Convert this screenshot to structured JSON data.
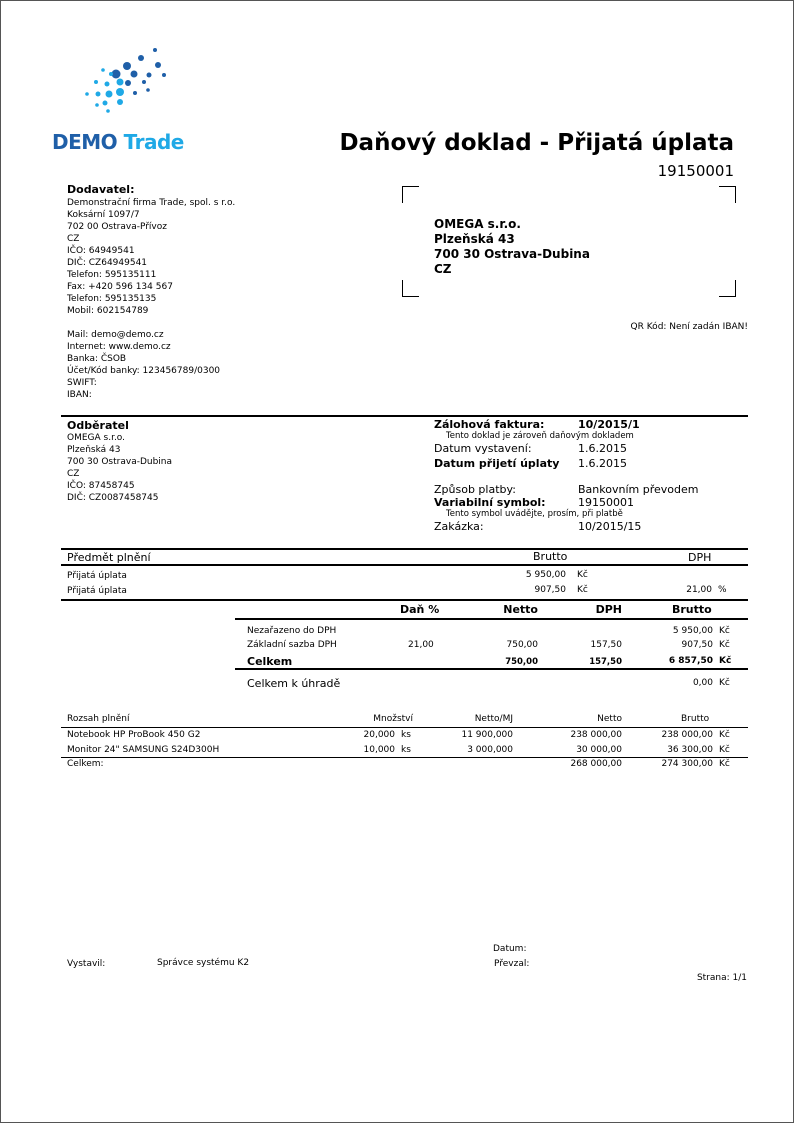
{
  "logo": {
    "text_dark": "DEMO",
    "text_light": "Trade",
    "colors": {
      "dark": "#1f5fa8",
      "light": "#1fa9e6"
    }
  },
  "header": {
    "title": "Daňový doklad - Přijatá úplata",
    "number": "19150001"
  },
  "supplier": {
    "heading": "Dodavatel:",
    "lines": [
      "Demonstrační firma Trade, spol. s r.o.",
      "Koksární 1097/7",
      "702 00 Ostrava-Přívoz",
      "CZ",
      "IČO: 64949541",
      "DIČ: CZ64949541",
      "Telefon: 595135111",
      "Fax: +420 596 134 567",
      "Telefon: 595135135",
      "Mobil: 602154789"
    ],
    "lines2": [
      "Mail: demo@demo.cz",
      "Internet: www.demo.cz",
      "Banka: ČSOB",
      "Účet/Kód banky: 123456789/0300",
      "SWIFT:",
      "IBAN:"
    ]
  },
  "address_box": {
    "lines": [
      "OMEGA s.r.o.",
      "Plzeňská 43",
      "700 30 Ostrava-Dubina",
      "CZ"
    ]
  },
  "qr_note": "QR Kód: Není zadán IBAN!",
  "customer": {
    "heading": "Odběratel",
    "lines": [
      "OMEGA s.r.o.",
      "Plzeňská 43",
      "700 30 Ostrava-Dubina",
      "CZ",
      "IČO: 87458745",
      "DIČ: CZ0087458745"
    ]
  },
  "details": {
    "advance_label": "Zálohová faktura:",
    "advance_value": "10/2015/1",
    "tax_note": "Tento doklad je zároveň daňovým dokladem",
    "issue_label": "Datum vystavení:",
    "issue_value": "1.6.2015",
    "received_label": "Datum přijetí úplaty",
    "received_value": "1.6.2015",
    "payment_label": "Způsob platby:",
    "payment_value": "Bankovním převodem",
    "vs_label": "Variabilní symbol:",
    "vs_value": "19150001",
    "vs_note": "Tento symbol uvádějte, prosím, při platbě",
    "order_label": "Zakázka:",
    "order_value": "10/2015/15"
  },
  "subject": {
    "headers": {
      "item": "Předmět plnění",
      "brutto": "Brutto",
      "dph": "DPH"
    },
    "rows": [
      {
        "item": "Přijatá úplata",
        "brutto": "5 950,00",
        "currency": "Kč",
        "dph": "",
        "dph_unit": ""
      },
      {
        "item": "Přijatá úplata",
        "brutto": "907,50",
        "currency": "Kč",
        "dph": "21,00",
        "dph_unit": "%"
      }
    ]
  },
  "vat_summary": {
    "headers": {
      "rate": "Daň %",
      "netto": "Netto",
      "dph": "DPH",
      "brutto": "Brutto"
    },
    "rows": [
      {
        "label": "Nezařazeno do DPH",
        "rate": "",
        "netto": "",
        "dph": "",
        "brutto": "5 950,00",
        "currency": "Kč"
      },
      {
        "label": "Základní sazba DPH",
        "rate": "21,00",
        "netto": "750,00",
        "dph": "157,50",
        "brutto": "907,50",
        "currency": "Kč"
      }
    ],
    "total": {
      "label": "Celkem",
      "netto": "750,00",
      "dph": "157,50",
      "brutto": "6 857,50",
      "currency": "Kč"
    },
    "to_pay": {
      "label": "Celkem k úhradě",
      "value": "0,00",
      "currency": "Kč"
    }
  },
  "items": {
    "headers": {
      "name": "Rozsah plnění",
      "qty": "Množství",
      "unit_price": "Netto/MJ",
      "netto": "Netto",
      "brutto": "Brutto"
    },
    "rows": [
      {
        "name": "Notebook HP ProBook 450 G2",
        "qty": "20,000",
        "unit": "ks",
        "unit_price": "11 900,000",
        "netto": "238 000,00",
        "brutto": "238 000,00",
        "currency": "Kč"
      },
      {
        "name": "Monitor 24\" SAMSUNG S24D300H",
        "qty": "10,000",
        "unit": "ks",
        "unit_price": "3 000,000",
        "netto": "30 000,00",
        "brutto": "36 300,00",
        "currency": "Kč"
      }
    ],
    "total": {
      "label": "Celkem:",
      "netto": "268 000,00",
      "brutto": "274 300,00",
      "currency": "Kč"
    }
  },
  "footer": {
    "issued_by_label": "Vystavil:",
    "issued_by": "Správce systému K2",
    "date_label": "Datum:",
    "received_label": "Převzal:",
    "page": "Strana: 1/1"
  }
}
